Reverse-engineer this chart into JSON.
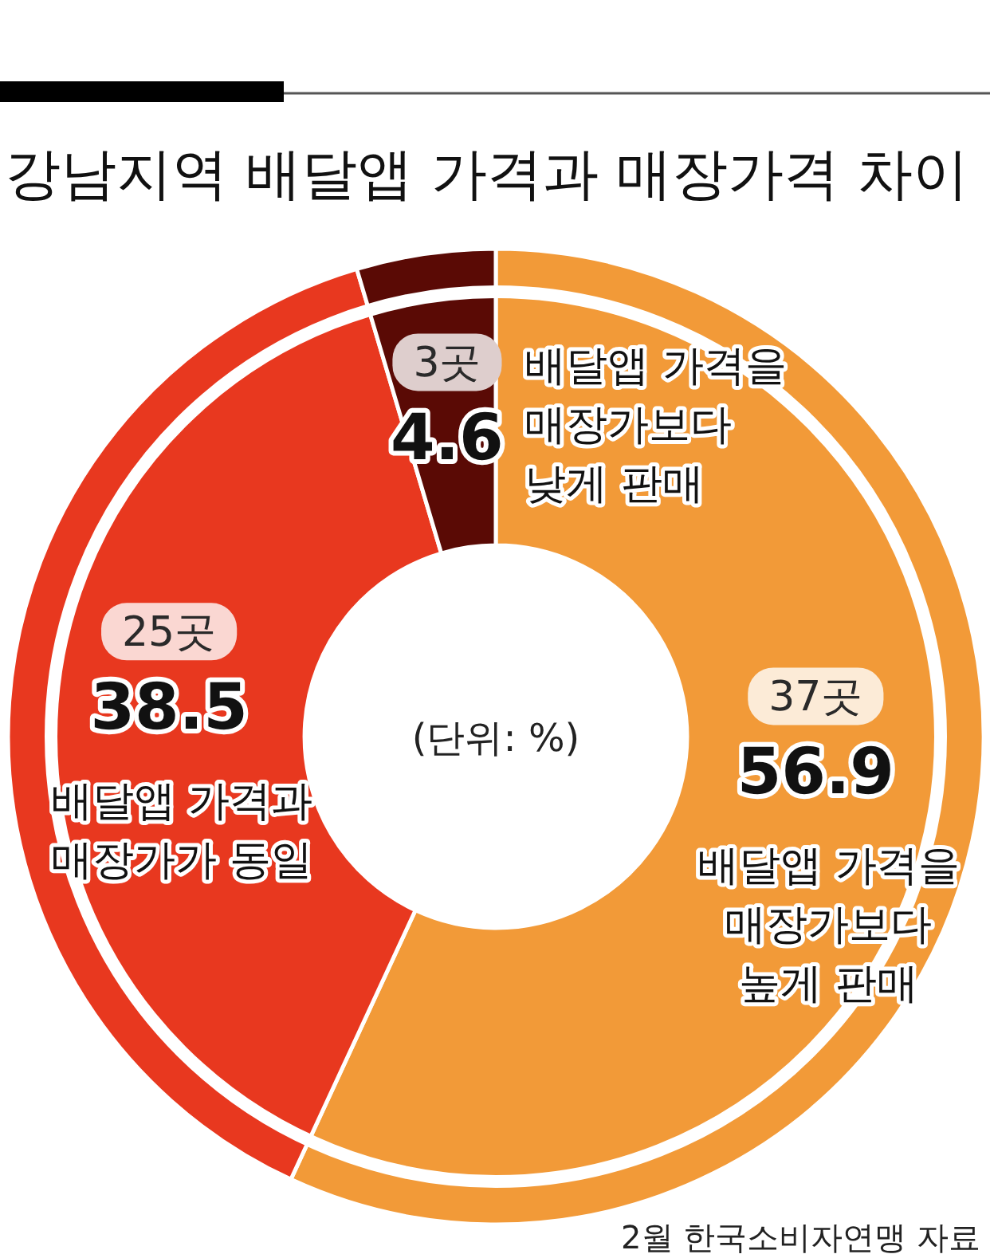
{
  "chart_data": {
    "type": "donut",
    "title": "강남지역 배달앱 가격과 매장가격 차이",
    "categories": [
      "배달앱 가격을 매장가보다 높게 판매",
      "배달앱 가격과 매장가가 동일",
      "배달앱 가격을 매장가보다 낮게 판매"
    ],
    "values": [
      56.9,
      38.5,
      4.6
    ],
    "colors": [
      "#f29a38",
      "#e8381f",
      "#5a0a05"
    ],
    "data_labels": true,
    "annotations": [
      {
        "text": "37곳",
        "x": "배달앱 가격을 매장가보다 높게 판매"
      },
      {
        "text": "25곳",
        "x": "배달앱 가격과 매장가가 동일"
      },
      {
        "text": "3곳",
        "x": "배달앱 가격을 매장가보다 낮게 판매"
      },
      "(단위: %)",
      "2월 한국소비자연맹 자료"
    ]
  }
}
